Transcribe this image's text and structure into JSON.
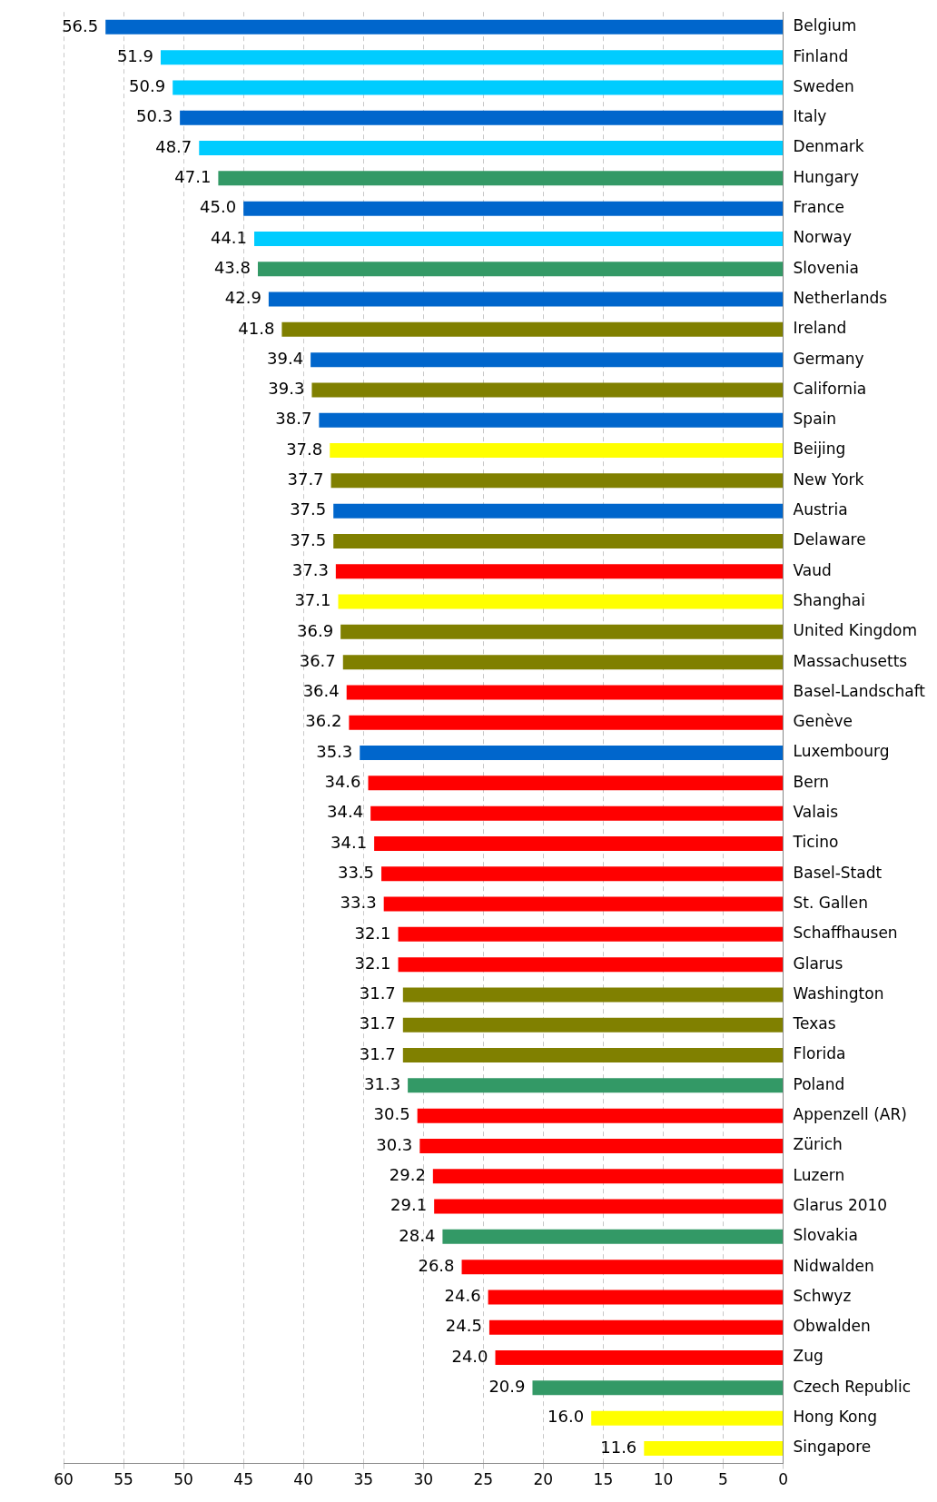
{
  "chart_data": {
    "type": "bar",
    "orientation": "horizontal",
    "categories": [
      "Belgium",
      "Finland",
      "Sweden",
      "Italy",
      "Denmark",
      "Hungary",
      "France",
      "Norway",
      "Slovenia",
      "Netherlands",
      "Ireland",
      "Germany",
      "California",
      "Spain",
      "Beijing",
      "New York",
      "Austria",
      "Delaware",
      "Vaud",
      "Shanghai",
      "United Kingdom",
      "Massachusetts",
      "Basel-Landschaft",
      "Genève",
      "Luxembourg",
      "Bern",
      "Valais",
      "Ticino",
      "Basel-Stadt",
      "St. Gallen",
      "Schaffhausen",
      "Glarus",
      "Washington",
      "Texas",
      "Florida",
      "Poland",
      "Appenzell (AR)",
      "Zürich",
      "Luzern",
      "Glarus 2010",
      "Slovakia",
      "Nidwalden",
      "Schwyz",
      "Obwalden",
      "Zug",
      "Czech Republic",
      "Hong Kong",
      "Singapore"
    ],
    "values": [
      56.5,
      51.9,
      50.9,
      50.3,
      48.7,
      47.1,
      45.0,
      44.1,
      43.8,
      42.9,
      41.8,
      39.4,
      39.3,
      38.7,
      37.8,
      37.7,
      37.5,
      37.5,
      37.3,
      37.1,
      36.9,
      36.7,
      36.4,
      36.2,
      35.3,
      34.6,
      34.4,
      34.1,
      33.5,
      33.3,
      32.1,
      32.1,
      31.7,
      31.7,
      31.7,
      31.3,
      30.5,
      30.3,
      29.2,
      29.1,
      28.4,
      26.8,
      24.6,
      24.5,
      24.0,
      20.9,
      16.0,
      11.6
    ],
    "value_labels": [
      "56.5",
      "51.9",
      "50.9",
      "50.3",
      "48.7",
      "47.1",
      "45.0",
      "44.1",
      "43.8",
      "42.9",
      "41.8",
      "39.4",
      "39.3",
      "38.7",
      "37.8",
      "37.7",
      "37.5",
      "37.5",
      "37.3",
      "37.1",
      "36.9",
      "36.7",
      "36.4",
      "36.2",
      "35.3",
      "34.6",
      "34.4",
      "34.1",
      "33.5",
      "33.3",
      "32.1",
      "32.1",
      "31.7",
      "31.7",
      "31.7",
      "31.3",
      "30.5",
      "30.3",
      "29.2",
      "29.1",
      "28.4",
      "26.8",
      "24.6",
      "24.5",
      "24.0",
      "20.9",
      "16.0",
      "11.6"
    ],
    "colors": [
      "#0066cc",
      "#00ccff",
      "#00ccff",
      "#0066cc",
      "#00ccff",
      "#339966",
      "#0066cc",
      "#00ccff",
      "#339966",
      "#0066cc",
      "#808000",
      "#0066cc",
      "#808000",
      "#0066cc",
      "#ffff00",
      "#808000",
      "#0066cc",
      "#808000",
      "#ff0000",
      "#ffff00",
      "#808000",
      "#808000",
      "#ff0000",
      "#ff0000",
      "#0066cc",
      "#ff0000",
      "#ff0000",
      "#ff0000",
      "#ff0000",
      "#ff0000",
      "#ff0000",
      "#ff0000",
      "#808000",
      "#808000",
      "#808000",
      "#339966",
      "#ff0000",
      "#ff0000",
      "#ff0000",
      "#ff0000",
      "#339966",
      "#ff0000",
      "#ff0000",
      "#ff0000",
      "#ff0000",
      "#339966",
      "#ffff00",
      "#ffff00"
    ],
    "xlim": [
      60,
      0
    ],
    "xticks": [
      60,
      55,
      50,
      45,
      40,
      35,
      30,
      25,
      20,
      15,
      10,
      5,
      0
    ],
    "grid": "x",
    "legend": false
  }
}
